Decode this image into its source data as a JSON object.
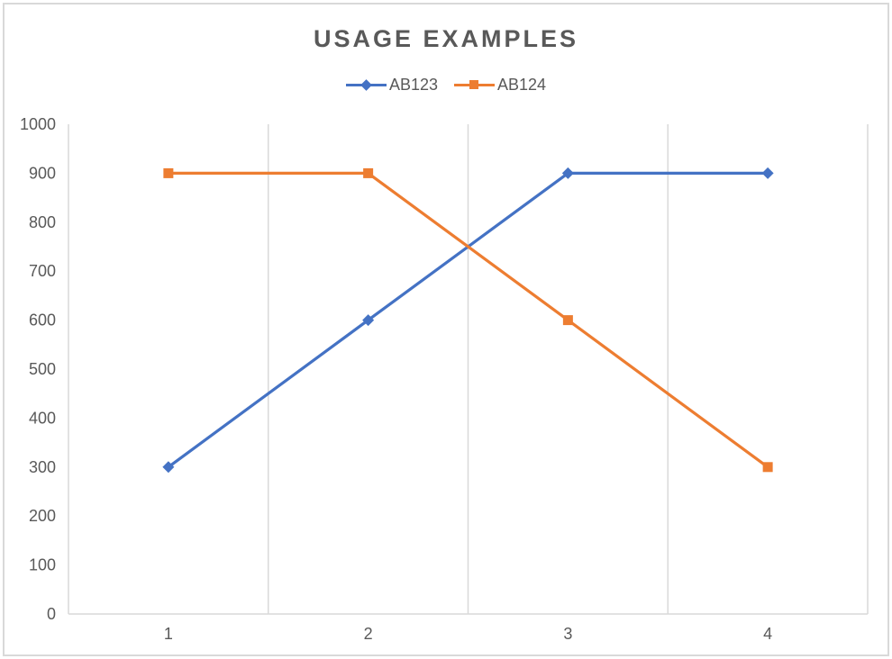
{
  "chart_data": {
    "type": "line",
    "title": "USAGE EXAMPLES",
    "categories": [
      "1",
      "2",
      "3",
      "4"
    ],
    "series": [
      {
        "name": "AB123",
        "marker": "diamond",
        "color": "#4472C4",
        "values": [
          300,
          600,
          900,
          900
        ]
      },
      {
        "name": "AB124",
        "marker": "square",
        "color": "#ED7D31",
        "values": [
          900,
          900,
          600,
          300
        ]
      }
    ],
    "xlabel": "",
    "ylabel": "",
    "ylim": [
      0,
      1000
    ],
    "yticks": [
      0,
      100,
      200,
      300,
      400,
      500,
      600,
      700,
      800,
      900,
      1000
    ],
    "grid": "vertical-only",
    "legend_position": "top",
    "line_width": 3.25,
    "colors": {
      "gridline": "#D9D9D9",
      "axis_line": "#D9D9D9",
      "tick_label": "#595959",
      "title": "#595959",
      "frame_border": "#D9D9D9"
    }
  }
}
